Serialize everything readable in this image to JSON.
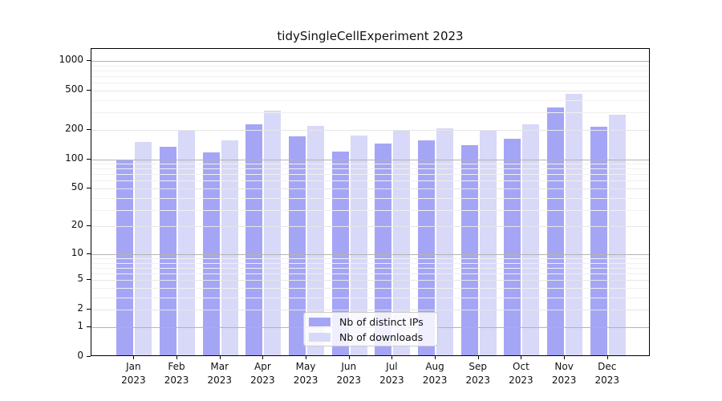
{
  "chart_data": {
    "type": "bar",
    "title": "tidySingleCellExperiment 2023",
    "categories": [
      "Jan",
      "Feb",
      "Mar",
      "Apr",
      "May",
      "Jun",
      "Jul",
      "Aug",
      "Sep",
      "Oct",
      "Nov",
      "Dec"
    ],
    "category_year": "2023",
    "series": [
      {
        "name": "Nb of distinct IPs",
        "color": "#a5a5f6",
        "values": [
          95,
          128,
          113,
          220,
          165,
          115,
          140,
          150,
          133,
          155,
          325,
          207
        ]
      },
      {
        "name": "Nb of downloads",
        "color": "#d8d8f8",
        "values": [
          145,
          190,
          151,
          300,
          210,
          168,
          188,
          200,
          193,
          218,
          445,
          273
        ]
      }
    ],
    "xlabel": "",
    "ylabel": "",
    "scale": "log1p",
    "ylim": [
      0,
      1325
    ],
    "y_ticks": [
      0,
      1,
      2,
      5,
      10,
      20,
      50,
      100,
      200,
      500,
      1000
    ],
    "grid": true,
    "legend_position": "lower-center-inside"
  }
}
